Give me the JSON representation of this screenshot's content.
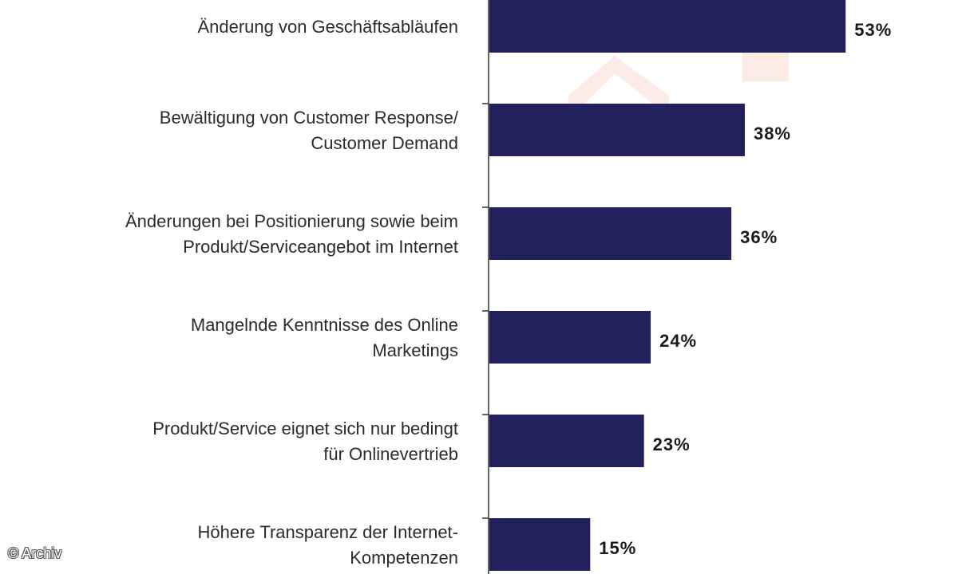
{
  "chart_data": {
    "type": "bar",
    "orientation": "horizontal",
    "categories": [
      [
        "Änderung von Geschäftsabläufen"
      ],
      [
        "Bewältigung von Customer Response/",
        "Customer Demand"
      ],
      [
        "Änderungen bei Positionierung sowie beim",
        "Produkt/Serviceangebot im Internet"
      ],
      [
        "Mangelnde Kenntnisse des Online",
        "Marketings"
      ],
      [
        "Produkt/Service eignet sich nur bedingt",
        "für Onlinevertrieb"
      ],
      [
        "Höhere Transparenz der Internet-",
        "Kompetenzen"
      ]
    ],
    "values": [
      53,
      38,
      36,
      24,
      23,
      15
    ],
    "value_labels": [
      "53%",
      "38%",
      "36%",
      "24%",
      "23%",
      "15%"
    ],
    "xlim": [
      0,
      60
    ],
    "bar_color": "#23205e",
    "grid": false,
    "legend": "none"
  },
  "credit": "© Archiv"
}
